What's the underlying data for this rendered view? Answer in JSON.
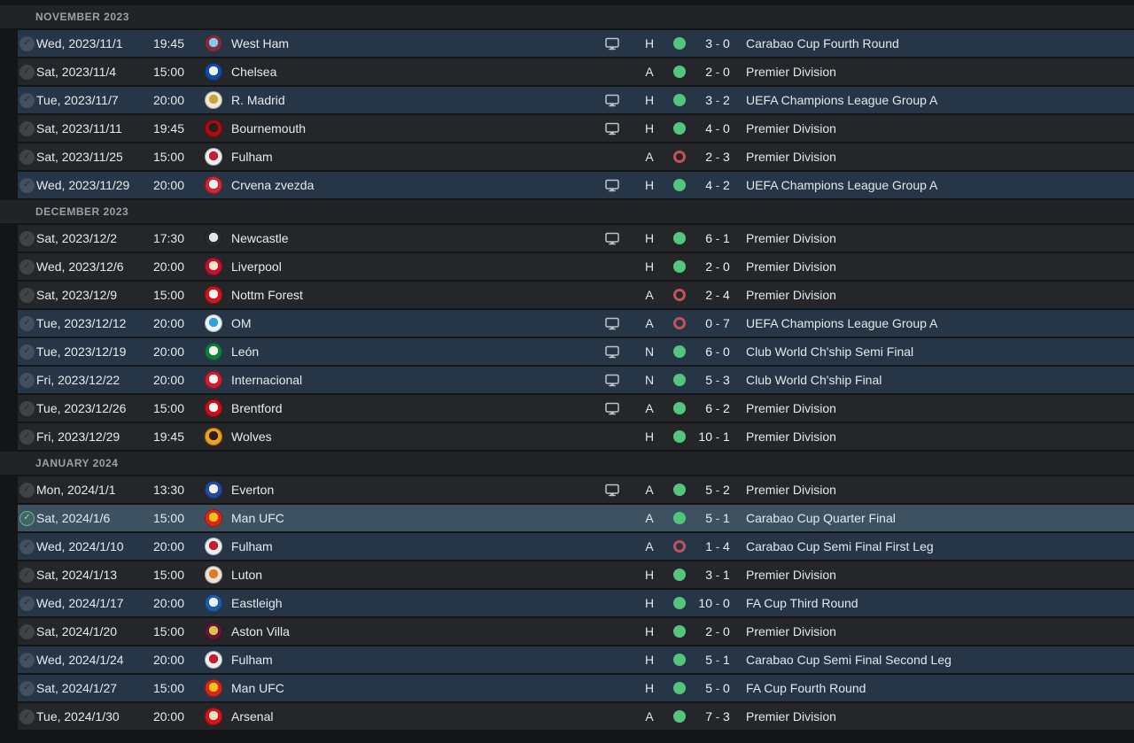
{
  "colors": {
    "page_bg": "#131517",
    "header_band_bg": "#212426",
    "league_row_bg": "#242629",
    "cup_row_bg": "#263646",
    "selected_row_bg": "#3e5160",
    "win_indicator": "#53c57d",
    "loss_indicator": "#c2525a",
    "text": "#e7ebed",
    "month_header_text": "#9aa0a4",
    "selected_check_green": "#8ae8a4",
    "tv_icon_color": "#bdc5cb"
  },
  "icons": {
    "check": "✓",
    "tv": "tv-icon",
    "result_win": "filled-circle",
    "result_loss": "ring-circle"
  },
  "sections": [
    {
      "label": "NOVEMBER 2023",
      "rows": [
        {
          "date": "Wed, 2023/11/1",
          "time": "19:45",
          "team": "West Ham",
          "badge": [
            "#7c2d3d",
            "#8fc6e8"
          ],
          "tv": true,
          "venue": "H",
          "result": "win",
          "score": [
            "3",
            "0"
          ],
          "competition": "Carabao Cup Fourth Round",
          "type": "cup",
          "selected": false
        },
        {
          "date": "Sat, 2023/11/4",
          "time": "15:00",
          "team": "Chelsea",
          "badge": [
            "#0f4ba5",
            "#eef3f8"
          ],
          "tv": false,
          "venue": "A",
          "result": "win",
          "score": [
            "2",
            "0"
          ],
          "competition": "Premier Division",
          "type": "league",
          "selected": false
        },
        {
          "date": "Tue, 2023/11/7",
          "time": "20:00",
          "team": "R. Madrid",
          "badge": [
            "#efe9d6",
            "#c9a23b"
          ],
          "tv": true,
          "venue": "H",
          "result": "win",
          "score": [
            "3",
            "2"
          ],
          "competition": "UEFA Champions League Group A",
          "type": "cup",
          "selected": false
        },
        {
          "date": "Sat, 2023/11/11",
          "time": "19:45",
          "team": "Bournemouth",
          "badge": [
            "#ad0b10",
            "#221f1f"
          ],
          "tv": true,
          "venue": "H",
          "result": "win",
          "score": [
            "4",
            "0"
          ],
          "competition": "Premier Division",
          "type": "league",
          "selected": false
        },
        {
          "date": "Sat, 2023/11/25",
          "time": "15:00",
          "team": "Fulham",
          "badge": [
            "#edeff0",
            "#c81e2c"
          ],
          "tv": false,
          "venue": "A",
          "result": "loss",
          "score": [
            "2",
            "3"
          ],
          "competition": "Premier Division",
          "type": "league",
          "selected": false
        },
        {
          "date": "Wed, 2023/11/29",
          "time": "20:00",
          "team": "Crvena zvezda",
          "badge": [
            "#d32432",
            "#f4f4f4"
          ],
          "tv": true,
          "venue": "H",
          "result": "win",
          "score": [
            "4",
            "2"
          ],
          "competition": "UEFA Champions League Group A",
          "type": "cup",
          "selected": false
        }
      ]
    },
    {
      "label": "DECEMBER 2023",
      "rows": [
        {
          "date": "Sat, 2023/12/2",
          "time": "17:30",
          "team": "Newcastle",
          "badge": [
            "#2a2b2f",
            "#e3e6e9"
          ],
          "tv": true,
          "venue": "H",
          "result": "win",
          "score": [
            "6",
            "1"
          ],
          "competition": "Premier Division",
          "type": "league",
          "selected": false
        },
        {
          "date": "Wed, 2023/12/6",
          "time": "20:00",
          "team": "Liverpool",
          "badge": [
            "#c7102e",
            "#efe6c8"
          ],
          "tv": false,
          "venue": "H",
          "result": "win",
          "score": [
            "2",
            "0"
          ],
          "competition": "Premier Division",
          "type": "league",
          "selected": false
        },
        {
          "date": "Sat, 2023/12/9",
          "time": "15:00",
          "team": "Nottm Forest",
          "badge": [
            "#d7131a",
            "#f3f3f3"
          ],
          "tv": false,
          "venue": "A",
          "result": "loss",
          "score": [
            "2",
            "4"
          ],
          "competition": "Premier Division",
          "type": "league",
          "selected": false
        },
        {
          "date": "Tue, 2023/12/12",
          "time": "20:00",
          "team": "OM",
          "badge": [
            "#eef2f4",
            "#2ba3dc"
          ],
          "tv": true,
          "venue": "A",
          "result": "loss",
          "score": [
            "0",
            "7"
          ],
          "competition": "UEFA Champions League Group A",
          "type": "cup",
          "selected": false
        },
        {
          "date": "Tue, 2023/12/19",
          "time": "20:00",
          "team": "León",
          "badge": [
            "#0f7d3b",
            "#f2f2ec"
          ],
          "tv": true,
          "venue": "N",
          "result": "win",
          "score": [
            "6",
            "0"
          ],
          "competition": "Club World Ch'ship Semi Final",
          "type": "cup",
          "selected": false
        },
        {
          "date": "Fri, 2023/12/22",
          "time": "20:00",
          "team": "Internacional",
          "badge": [
            "#d51a2b",
            "#f3f3f3"
          ],
          "tv": true,
          "venue": "N",
          "result": "win",
          "score": [
            "5",
            "3"
          ],
          "competition": "Club World Ch'ship Final",
          "type": "cup",
          "selected": false
        },
        {
          "date": "Tue, 2023/12/26",
          "time": "15:00",
          "team": "Brentford",
          "badge": [
            "#cf0b13",
            "#f4f4f4"
          ],
          "tv": true,
          "venue": "A",
          "result": "win",
          "score": [
            "6",
            "2"
          ],
          "competition": "Premier Division",
          "type": "league",
          "selected": false
        },
        {
          "date": "Fri, 2023/12/29",
          "time": "19:45",
          "team": "Wolves",
          "badge": [
            "#f2a016",
            "#27211f"
          ],
          "tv": false,
          "venue": "H",
          "result": "win",
          "score": [
            "10",
            "1"
          ],
          "competition": "Premier Division",
          "type": "league",
          "selected": false
        }
      ]
    },
    {
      "label": "JANUARY 2024",
      "rows": [
        {
          "date": "Mon, 2024/1/1",
          "time": "13:30",
          "team": "Everton",
          "badge": [
            "#2548a4",
            "#eef1f4"
          ],
          "tv": true,
          "venue": "A",
          "result": "win",
          "score": [
            "5",
            "2"
          ],
          "competition": "Premier Division",
          "type": "league",
          "selected": false
        },
        {
          "date": "Sat, 2024/1/6",
          "time": "15:00",
          "team": "Man UFC",
          "badge": [
            "#d9271d",
            "#f4c41a"
          ],
          "tv": false,
          "venue": "A",
          "result": "win",
          "score": [
            "5",
            "1"
          ],
          "competition": "Carabao Cup Quarter Final",
          "type": "cup",
          "selected": true
        },
        {
          "date": "Wed, 2024/1/10",
          "time": "20:00",
          "team": "Fulham",
          "badge": [
            "#edeff0",
            "#c81e2c"
          ],
          "tv": false,
          "venue": "A",
          "result": "loss",
          "score": [
            "1",
            "4"
          ],
          "competition": "Carabao Cup Semi Final First Leg",
          "type": "cup",
          "selected": false
        },
        {
          "date": "Sat, 2024/1/13",
          "time": "15:00",
          "team": "Luton",
          "badge": [
            "#e9e4d9",
            "#e07a26"
          ],
          "tv": false,
          "venue": "H",
          "result": "win",
          "score": [
            "3",
            "1"
          ],
          "competition": "Premier Division",
          "type": "league",
          "selected": false
        },
        {
          "date": "Wed, 2024/1/17",
          "time": "20:00",
          "team": "Eastleigh",
          "badge": [
            "#1c5cab",
            "#eef2f6"
          ],
          "tv": false,
          "venue": "H",
          "result": "win",
          "score": [
            "10",
            "0"
          ],
          "competition": "FA Cup Third Round",
          "type": "cup",
          "selected": false
        },
        {
          "date": "Sat, 2024/1/20",
          "time": "15:00",
          "team": "Aston Villa",
          "badge": [
            "#621634",
            "#dec04f"
          ],
          "tv": false,
          "venue": "H",
          "result": "win",
          "score": [
            "2",
            "0"
          ],
          "competition": "Premier Division",
          "type": "league",
          "selected": false
        },
        {
          "date": "Wed, 2024/1/24",
          "time": "20:00",
          "team": "Fulham",
          "badge": [
            "#edeff0",
            "#c81e2c"
          ],
          "tv": false,
          "venue": "H",
          "result": "win",
          "score": [
            "5",
            "1"
          ],
          "competition": "Carabao Cup Semi Final Second Leg",
          "type": "cup",
          "selected": false
        },
        {
          "date": "Sat, 2024/1/27",
          "time": "15:00",
          "team": "Man UFC",
          "badge": [
            "#d9271d",
            "#f4c41a"
          ],
          "tv": false,
          "venue": "H",
          "result": "win",
          "score": [
            "5",
            "0"
          ],
          "competition": "FA Cup Fourth Round",
          "type": "cup",
          "selected": false
        },
        {
          "date": "Tue, 2024/1/30",
          "time": "20:00",
          "team": "Arsenal",
          "badge": [
            "#d81219",
            "#efe3bf"
          ],
          "tv": false,
          "venue": "A",
          "result": "win",
          "score": [
            "7",
            "3"
          ],
          "competition": "Premier Division",
          "type": "league",
          "selected": false
        }
      ]
    }
  ]
}
